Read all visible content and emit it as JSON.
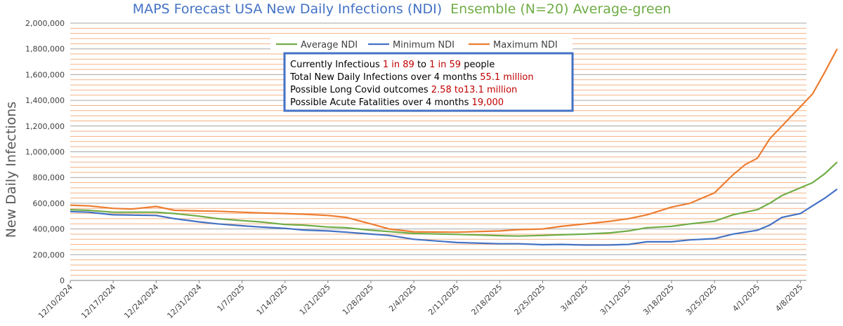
{
  "chart_data": {
    "type": "line",
    "title_part1": "MAPS Forecast USA New Daily Infections (NDI)",
    "title_part2": "Ensemble (N=20) Average-green",
    "ylabel": "New Daily Infections",
    "xlabel": "",
    "ylim": [
      0,
      2000000
    ],
    "y_ticks": [
      0,
      200000,
      400000,
      600000,
      800000,
      1000000,
      1200000,
      1400000,
      1600000,
      1800000,
      2000000
    ],
    "y_tick_labels": [
      "0",
      "200,000",
      "400,000",
      "600,000",
      "800,000",
      "1,000,000",
      "1,200,000",
      "1,400,000",
      "1,600,000",
      "1,800,000",
      "2,000,000"
    ],
    "x_start_date": "2024-12-10",
    "num_days": 121,
    "x_tick_labels": [
      "12/10/2024",
      "12/17/2024",
      "12/24/2024",
      "12/31/2024",
      "1/7/2025",
      "1/14/2025",
      "1/21/2025",
      "1/28/2025",
      "2/4/2025",
      "2/11/2025",
      "2/18/2025",
      "2/25/2025",
      "3/4/2025",
      "3/11/2025",
      "3/18/2025",
      "3/25/2025",
      "4/1/2025",
      "4/8/2025"
    ],
    "x_tick_days": [
      0,
      7,
      14,
      21,
      28,
      35,
      42,
      49,
      56,
      63,
      70,
      77,
      84,
      91,
      98,
      105,
      112,
      119
    ],
    "grid": true,
    "legend_position": "top-center",
    "series": [
      {
        "name": "Average NDI",
        "color": "#70ad47",
        "points": [
          [
            0,
            550000
          ],
          [
            3,
            545000
          ],
          [
            7,
            530000
          ],
          [
            14,
            530000
          ],
          [
            17,
            520000
          ],
          [
            21,
            500000
          ],
          [
            24,
            480000
          ],
          [
            28,
            465000
          ],
          [
            31,
            455000
          ],
          [
            35,
            435000
          ],
          [
            38,
            430000
          ],
          [
            42,
            415000
          ],
          [
            45,
            410000
          ],
          [
            49,
            390000
          ],
          [
            52,
            380000
          ],
          [
            56,
            365000
          ],
          [
            63,
            358000
          ],
          [
            70,
            348000
          ],
          [
            73,
            345000
          ],
          [
            77,
            350000
          ],
          [
            80,
            355000
          ],
          [
            84,
            360000
          ],
          [
            88,
            370000
          ],
          [
            91,
            385000
          ],
          [
            94,
            410000
          ],
          [
            98,
            420000
          ],
          [
            101,
            440000
          ],
          [
            105,
            460000
          ],
          [
            108,
            510000
          ],
          [
            112,
            550000
          ],
          [
            114,
            600000
          ],
          [
            116,
            660000
          ],
          [
            119,
            720000
          ],
          [
            121,
            760000
          ],
          [
            123,
            830000
          ],
          [
            125,
            920000
          ]
        ]
      },
      {
        "name": "Minimum NDI",
        "color": "#4472c4",
        "points": [
          [
            0,
            535000
          ],
          [
            3,
            530000
          ],
          [
            7,
            510000
          ],
          [
            14,
            505000
          ],
          [
            17,
            480000
          ],
          [
            21,
            455000
          ],
          [
            24,
            440000
          ],
          [
            28,
            425000
          ],
          [
            31,
            415000
          ],
          [
            35,
            405000
          ],
          [
            38,
            392000
          ],
          [
            42,
            385000
          ],
          [
            45,
            375000
          ],
          [
            49,
            360000
          ],
          [
            52,
            350000
          ],
          [
            56,
            320000
          ],
          [
            63,
            295000
          ],
          [
            70,
            285000
          ],
          [
            73,
            285000
          ],
          [
            77,
            278000
          ],
          [
            80,
            280000
          ],
          [
            84,
            275000
          ],
          [
            88,
            276000
          ],
          [
            91,
            280000
          ],
          [
            94,
            300000
          ],
          [
            98,
            300000
          ],
          [
            101,
            315000
          ],
          [
            105,
            325000
          ],
          [
            108,
            360000
          ],
          [
            112,
            390000
          ],
          [
            114,
            430000
          ],
          [
            116,
            490000
          ],
          [
            119,
            520000
          ],
          [
            121,
            580000
          ],
          [
            123,
            640000
          ],
          [
            125,
            710000
          ]
        ]
      },
      {
        "name": "Maximum NDI",
        "color": "#ed7d31",
        "points": [
          [
            0,
            585000
          ],
          [
            3,
            580000
          ],
          [
            7,
            560000
          ],
          [
            10,
            555000
          ],
          [
            14,
            575000
          ],
          [
            17,
            545000
          ],
          [
            21,
            540000
          ],
          [
            24,
            538000
          ],
          [
            28,
            530000
          ],
          [
            31,
            525000
          ],
          [
            35,
            520000
          ],
          [
            38,
            515000
          ],
          [
            42,
            505000
          ],
          [
            45,
            490000
          ],
          [
            49,
            440000
          ],
          [
            52,
            400000
          ],
          [
            56,
            378000
          ],
          [
            63,
            375000
          ],
          [
            70,
            385000
          ],
          [
            73,
            395000
          ],
          [
            77,
            400000
          ],
          [
            80,
            420000
          ],
          [
            84,
            440000
          ],
          [
            88,
            460000
          ],
          [
            91,
            480000
          ],
          [
            94,
            510000
          ],
          [
            98,
            570000
          ],
          [
            101,
            600000
          ],
          [
            105,
            680000
          ],
          [
            108,
            820000
          ],
          [
            110,
            900000
          ],
          [
            112,
            950000
          ],
          [
            114,
            1100000
          ],
          [
            116,
            1200000
          ],
          [
            118,
            1300000
          ],
          [
            119,
            1350000
          ],
          [
            121,
            1450000
          ],
          [
            123,
            1620000
          ],
          [
            125,
            1800000
          ]
        ]
      }
    ],
    "annotation_box": {
      "lines": [
        {
          "parts": [
            {
              "text": "Currently Infectious ",
              "highlight": false
            },
            {
              "text": "1 in 89",
              "highlight": true
            },
            {
              "text": " to ",
              "highlight": false
            },
            {
              "text": "1 in 59",
              "highlight": true
            },
            {
              "text": " people",
              "highlight": false
            }
          ]
        },
        {
          "parts": [
            {
              "text": "Total New Daily Infections over 4 months ",
              "highlight": false
            },
            {
              "text": "55.1 million",
              "highlight": true
            }
          ]
        },
        {
          "parts": [
            {
              "text": "Possible Long Covid outcomes ",
              "highlight": false
            },
            {
              "text": "2.58 to13.1 million",
              "highlight": true
            }
          ]
        },
        {
          "parts": [
            {
              "text": "Possible Acute Fatalities over 4 months ",
              "highlight": false
            },
            {
              "text": "19,000",
              "highlight": true
            }
          ]
        }
      ]
    },
    "colors": {
      "grid_major": "#a6a6a6",
      "grid_minor": "#f4b183",
      "box_border": "#4472c4",
      "highlight_text": "#c00000"
    }
  }
}
